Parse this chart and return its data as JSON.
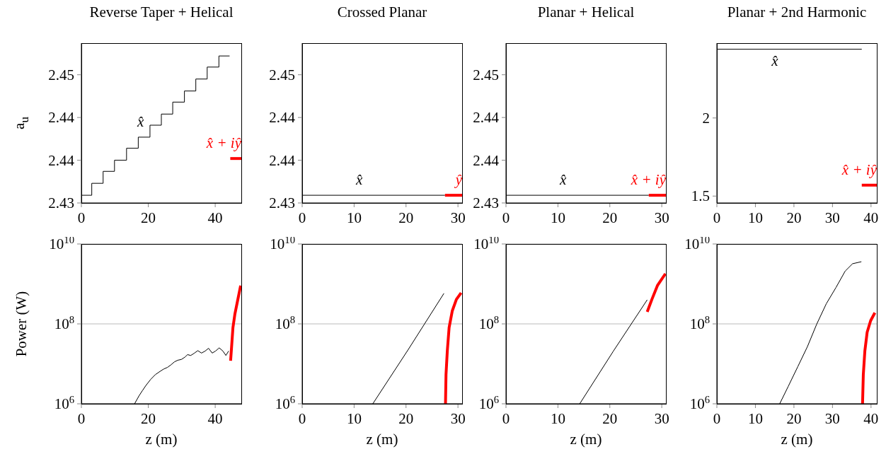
{
  "chart_data": [
    {
      "type": "line",
      "title": "Reverse Taper + Helical",
      "ylabel": "a$_{u}$",
      "xlim": [
        0,
        47.8
      ],
      "xticks": [
        0,
        20,
        40
      ],
      "ylim": [
        2.43,
        2.4487
      ],
      "yticks": [
        2.43,
        {
          "value": 2.435,
          "label": "2.44"
        },
        2.44,
        {
          "value": 2.445,
          "label": "2.45"
        }
      ],
      "series": [
        {
          "name": "x̂",
          "type": "step",
          "color": "#000000",
          "x": [
            0,
            3.1,
            6.5,
            9.9,
            13.5,
            17.0,
            20.5,
            23.9,
            27.3,
            30.8,
            34.2,
            37.6,
            41.1,
            44.3
          ],
          "values": [
            2.4309,
            2.4323,
            2.4337,
            2.435,
            2.4364,
            2.4377,
            2.4391,
            2.4404,
            2.4418,
            2.4431,
            2.4445,
            2.4459,
            2.4472,
            2.4472
          ]
        },
        {
          "name": "x̂ + iŷ",
          "color": "#ff0000",
          "x": [
            44.5,
            47.8
          ],
          "values": [
            2.4352,
            2.4352
          ]
        }
      ]
    },
    {
      "type": "line",
      "title": "Crossed Planar",
      "xlim": [
        0,
        30.8
      ],
      "xticks": [
        0,
        10,
        20,
        30
      ],
      "ylim": [
        2.43,
        2.4487
      ],
      "yticks": [
        2.43,
        {
          "value": 2.435,
          "label": "2.44"
        },
        2.44,
        {
          "value": 2.445,
          "label": "2.45"
        }
      ],
      "series": [
        {
          "name": "x̂",
          "color": "#000000",
          "x": [
            0,
            27.5
          ],
          "values": [
            2.4309,
            2.4309
          ]
        },
        {
          "name": "ŷ",
          "color": "#ff0000",
          "x": [
            27.5,
            30.8
          ],
          "values": [
            2.4309,
            2.4309
          ]
        }
      ]
    },
    {
      "type": "line",
      "title": "Planar + Helical",
      "xlim": [
        0,
        30.8
      ],
      "xticks": [
        0,
        10,
        20,
        30
      ],
      "ylim": [
        2.43,
        2.4487
      ],
      "yticks": [
        2.43,
        {
          "value": 2.435,
          "label": "2.44"
        },
        2.44,
        {
          "value": 2.445,
          "label": "2.45"
        }
      ],
      "series": [
        {
          "name": "x̂",
          "color": "#000000",
          "x": [
            0,
            27.5
          ],
          "values": [
            2.4309,
            2.4309
          ]
        },
        {
          "name": "x̂ + iŷ",
          "color": "#ff0000",
          "x": [
            27.5,
            30.8
          ],
          "values": [
            2.4309,
            2.4309
          ]
        }
      ]
    },
    {
      "type": "line",
      "title": "Planar + 2nd Harmonic",
      "xlim": [
        0,
        41.5
      ],
      "xticks": [
        0,
        10,
        20,
        30,
        40
      ],
      "ylim": [
        1.456,
        2.479
      ],
      "yticks": [
        1.5,
        2
      ],
      "series": [
        {
          "name": "x̂",
          "color": "#000000",
          "x": [
            0,
            37.6
          ],
          "values": [
            2.44,
            2.44
          ]
        },
        {
          "name": "x̂ + iŷ",
          "color": "#ff0000",
          "x": [
            37.6,
            41.5
          ],
          "values": [
            1.57,
            1.57
          ]
        }
      ]
    },
    {
      "type": "line",
      "ylabel": "Power (W)",
      "xlabel": "z (m)",
      "log": "y",
      "grid": "y",
      "xlim": [
        0,
        47.8
      ],
      "xticks": [
        0,
        20,
        40
      ],
      "ylim": [
        1000000,
        10000000000
      ],
      "yticks": [
        {
          "value": 1000000,
          "label": "10$^{6}$"
        },
        {
          "value": 100000000,
          "label": "10$^{8}$"
        },
        {
          "value": 10000000000,
          "label": "10$^{10}$"
        }
      ],
      "series": [
        {
          "color": "#000000",
          "x": [
            15.9,
            17.2,
            18.2,
            19.3,
            20.7,
            22.1,
            23.5,
            24.6,
            25.7,
            26.7,
            27.8,
            28.8,
            29.9,
            31.0,
            31.7,
            32.7,
            33.8,
            34.8,
            35.9,
            37.0,
            38.0,
            39.1,
            40.1,
            41.2,
            42.3,
            43.2,
            44.0
          ],
          "values": [
            1000000,
            1570000,
            2110000,
            2880000,
            4070000,
            5370000,
            6460000,
            7410000,
            8130000,
            9330000,
            11200000,
            12300000,
            12900000,
            14800000,
            17000000,
            16200000,
            18600000,
            21400000,
            18600000,
            20900000,
            24500000,
            18600000,
            20900000,
            25100000,
            20900000,
            16200000,
            20900000
          ]
        },
        {
          "color": "#ff0000",
          "x": [
            44.6,
            44.9,
            45.3,
            45.9,
            46.6,
            47.6
          ],
          "values": [
            12000000,
            27000000,
            81000000,
            180000000,
            350000000,
            910000000
          ]
        }
      ]
    },
    {
      "type": "line",
      "xlabel": "z (m)",
      "log": "y",
      "grid": "y",
      "xlim": [
        0,
        30.8
      ],
      "xticks": [
        0,
        10,
        20,
        30
      ],
      "ylim": [
        1000000,
        10000000000
      ],
      "yticks": [
        {
          "value": 1000000,
          "label": "10$^{6}$"
        },
        {
          "value": 100000000,
          "label": "10$^{8}$"
        },
        {
          "value": 10000000000,
          "label": "10$^{10}$"
        }
      ],
      "series": [
        {
          "color": "#000000",
          "x": [
            13.6,
            20.45,
            27.3
          ],
          "values": [
            1000000,
            23000000,
            580000000
          ]
        },
        {
          "color": "#ff0000",
          "x": [
            27.6,
            27.7,
            27.95,
            28.3,
            28.9,
            29.7,
            30.6
          ],
          "values": [
            1000000,
            5400000,
            21000000,
            81000000,
            210000000,
            410000000,
            600000000
          ]
        }
      ]
    },
    {
      "type": "line",
      "xlabel": "z (m)",
      "log": "y",
      "grid": "y",
      "xlim": [
        0,
        30.8
      ],
      "xticks": [
        0,
        10,
        20,
        30
      ],
      "ylim": [
        1000000,
        10000000000
      ],
      "yticks": [
        {
          "value": 1000000,
          "label": "10$^{6}$"
        },
        {
          "value": 100000000,
          "label": "10$^{8}$"
        },
        {
          "value": 10000000000,
          "label": "10$^{10}$"
        }
      ],
      "series": [
        {
          "color": "#000000",
          "x": [
            14.2,
            20.7,
            27.2
          ],
          "values": [
            1000000,
            21000000,
            400000000
          ]
        },
        {
          "color": "#ff0000",
          "x": [
            27.2,
            28.1,
            29.2,
            30.7
          ],
          "values": [
            200000000,
            410000000,
            930000000,
            1800000000
          ]
        }
      ]
    },
    {
      "type": "line",
      "xlabel": "z (m)",
      "log": "y",
      "grid": "y",
      "xlim": [
        0,
        41.5
      ],
      "xticks": [
        0,
        10,
        20,
        30,
        40
      ],
      "ylim": [
        1000000,
        10000000000
      ],
      "yticks": [
        {
          "value": 1000000,
          "label": "10$^{6}$"
        },
        {
          "value": 100000000,
          "label": "10$^{8}$"
        },
        {
          "value": 10000000000,
          "label": "10$^{10}$"
        }
      ],
      "series": [
        {
          "color": "#000000",
          "x": [
            16.3,
            18.5,
            21.0,
            23.5,
            25.9,
            28.4,
            30.9,
            33.3,
            35.2,
            37.5
          ],
          "values": [
            1000000,
            2700000,
            8500000,
            27000000,
            98000000,
            320000000,
            810000000,
            2100000000,
            3200000000,
            3600000000
          ]
        },
        {
          "color": "#ff0000",
          "x": [
            37.8,
            38.0,
            38.4,
            39.0,
            39.9,
            41.0
          ],
          "values": [
            1000000,
            5400000,
            21000000,
            62000000,
            120000000,
            190000000
          ]
        }
      ]
    }
  ]
}
